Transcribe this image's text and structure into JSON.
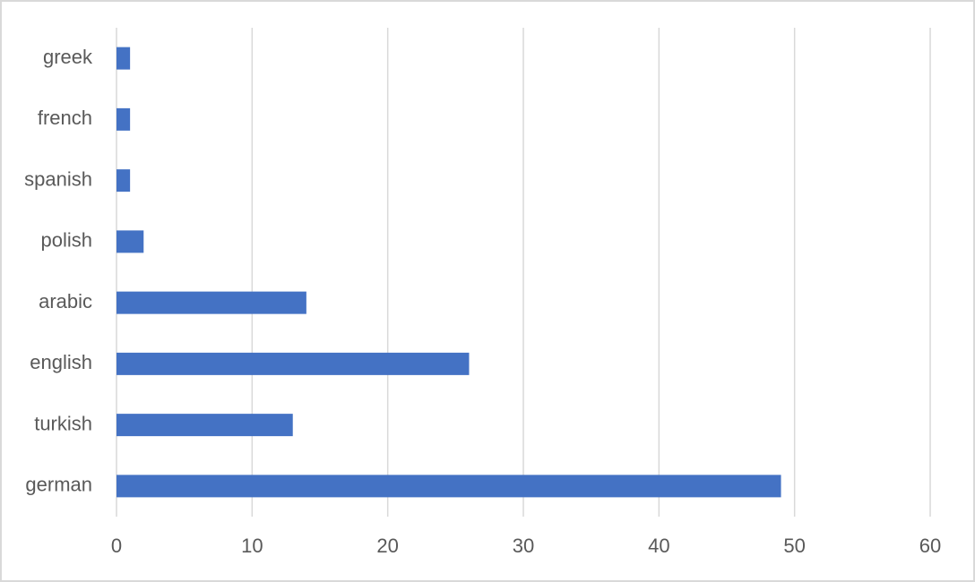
{
  "chart_data": {
    "type": "bar",
    "orientation": "horizontal",
    "categories": [
      "greek",
      "french",
      "spanish",
      "polish",
      "arabic",
      "english",
      "turkish",
      "german"
    ],
    "values": [
      1,
      1,
      1,
      2,
      14,
      26,
      13,
      49
    ],
    "color": "#4472c4",
    "xlim": [
      0,
      60
    ],
    "xticks": [
      0,
      10,
      20,
      30,
      40,
      50,
      60
    ],
    "grid": true
  }
}
